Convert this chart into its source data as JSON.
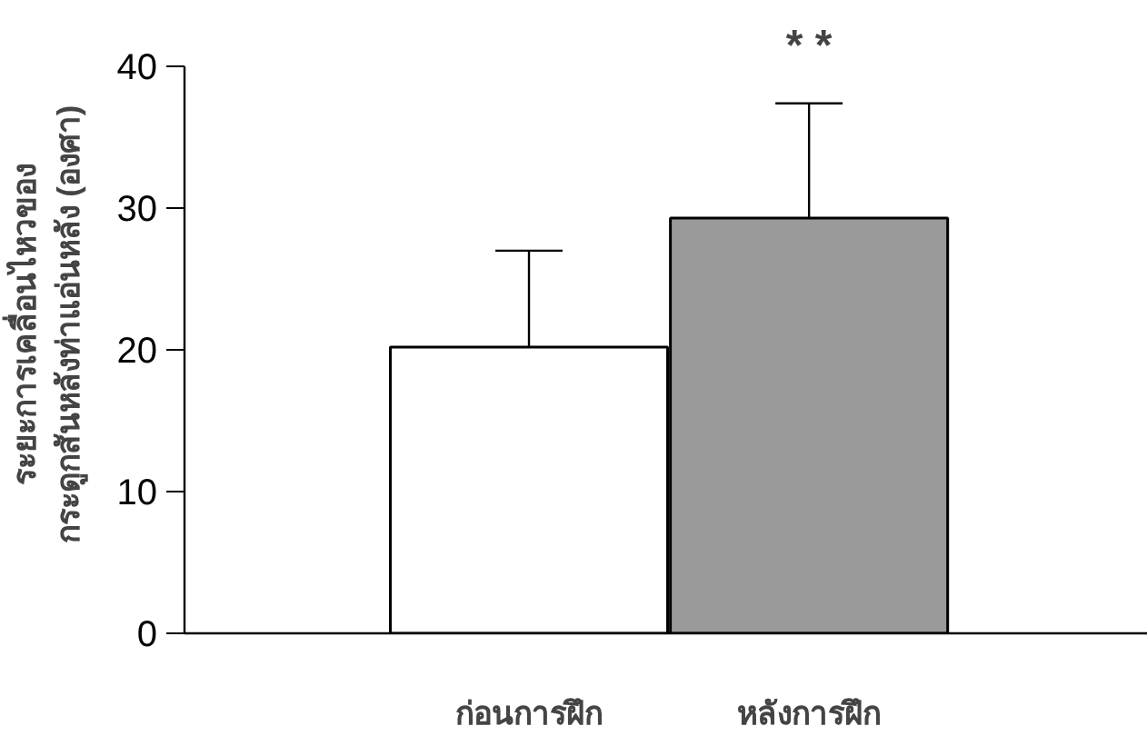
{
  "chart_data": {
    "type": "bar",
    "ylabel": "ระยะการเคลื่อนไหวของ\nกระดูกสันหลังท่าแอ่นหลัง (องศา)",
    "categories": [
      "ก่อนการฝึก",
      "หลังการฝึก"
    ],
    "values": [
      20.2,
      29.3
    ],
    "colors": [
      "#ffffff",
      "#9a9a9a"
    ],
    "errors": [
      [
        20.2,
        27.0
      ],
      [
        29.3,
        37.4
      ]
    ],
    "ylim": [
      0,
      40
    ],
    "yticks": [
      0,
      10,
      20,
      30,
      40
    ],
    "grid": false,
    "annotations": [
      "* *"
    ]
  }
}
